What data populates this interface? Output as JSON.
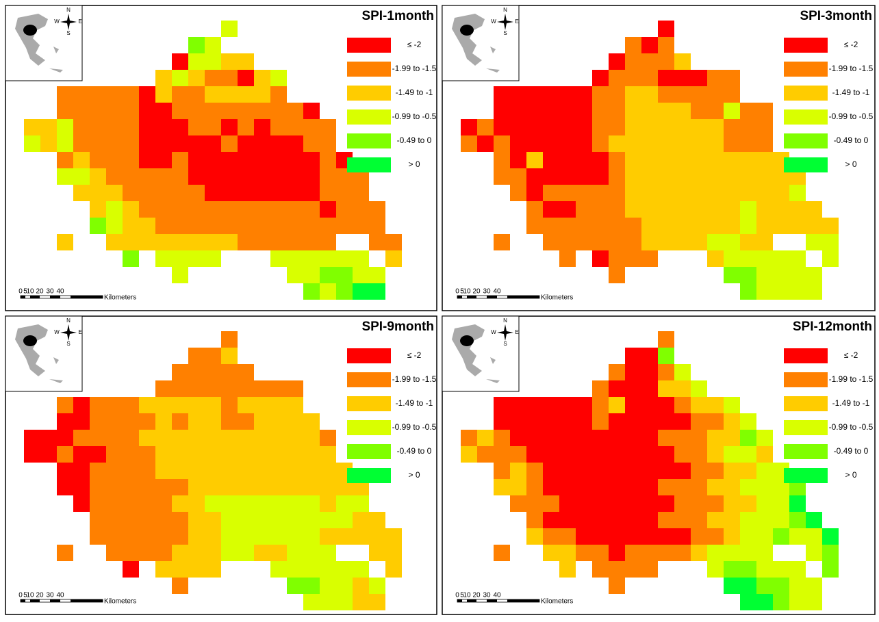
{
  "panels": [
    {
      "title": "SPI-1month",
      "grid": [
        "............3..........",
        "..........43...........",
        ".........03322.........",
        "........23211023.......",
        "..11111021122221.......",
        "..1111100111111110.....",
        "2231111000110101111....",
        "3231111000001000011....",
        "..121110010000000010...",
        "..3321111100000000111..",
        "...222111110000000111..",
        "....232111111111110111.",
        "....432211111111111111.",
        "..2..22222222111111..11",
        "......4.3333...333333.2",
        ".........3......334433.",
        ".................43455."
      ]
    },
    {
      "title": "SPI-3month",
      "grid": [
        "............0..........",
        "..........101..........",
        ".........01112.........",
        "........011100011......",
        "..000000112211111......",
        "..00000011222211311....",
        "0100000011222222111....",
        "1010000012222222111....",
        "..102000012222222222...",
        "..1100000122222222222..",
        "...101111122222222223..",
        "....100111222222232222.",
        "....1111111222222322222",
        "..1..11111122223322..33",
        "......1.0111...233333.3",
        ".........1......443333.",
        ".................43333."
      ]
    },
    {
      "title": "SPI-9month",
      "grid": [
        "............1..........",
        "..........112..........",
        ".........11111.........",
        "........111111111......",
        "..101112222212222......",
        "..0011112122112222.....",
        "0001111222222222221....",
        "0010011122222222222....",
        "..001111222222222222...",
        "..0011111122222222222..",
        "...011111223333333233..",
        "....111111223333333322.",
        "....1111112233333322222",
        "..1..11112223322333..22",
        "......0.2222...333333.2",
        ".........1......443323.",
        ".................33322."
      ]
    },
    {
      "title": "SPI-12month",
      "grid": [
        "............1..........",
        "..........004..........",
        ".........10013.........",
        "........1000223........",
        "..000000120001223......",
        "..0000001000001123.....",
        "1210000000001112243....",
        "2111000000000112332....",
        "..121000000000112233...",
        "..2210000000111223334..",
        "...111000000011122335..",
        "....100000001112233345.",
        "....2110000000112334335",
        "..1..22110111123333..34",
        "......2.1111...344333.4",
        ".........1......554433.",
        ".................55433."
      ]
    }
  ],
  "legend": [
    {
      "label": "≤ -2",
      "color": "#ff0000"
    },
    {
      "label": "-1.99 to -1.5",
      "color": "#ff8000"
    },
    {
      "label": "-1.49 to -1",
      "color": "#ffcc00"
    },
    {
      "label": "-0.99 to -0.5",
      "color": "#d9ff00"
    },
    {
      "label": "-0.49 to 0",
      "color": "#80ff00"
    },
    {
      "label": "> 0",
      "color": "#00ff33"
    }
  ],
  "scale_bar": {
    "ticks": [
      "0",
      "5",
      "10",
      "20",
      "30",
      "40"
    ],
    "unit": "Kilometers"
  },
  "compass": {
    "n": "N",
    "s": "S",
    "e": "E",
    "w": "W"
  }
}
